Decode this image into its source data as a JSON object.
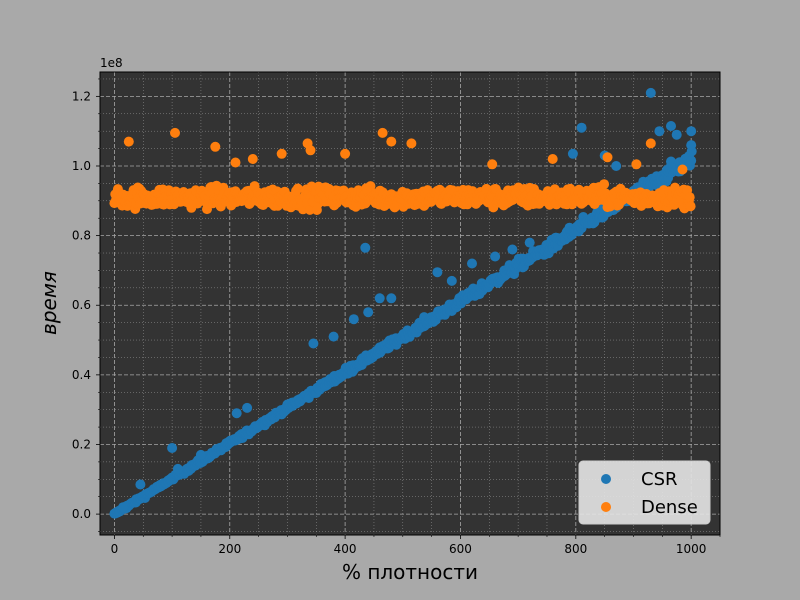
{
  "chart_data": {
    "type": "scatter",
    "xlabel": "% плотности",
    "ylabel": "время",
    "y_multiplier": "1e8",
    "xlim": [
      -25,
      1050
    ],
    "ylim": [
      -0.06,
      1.27
    ],
    "x_ticks": [
      0,
      200,
      400,
      600,
      800,
      1000
    ],
    "y_ticks": [
      0.0,
      0.2,
      0.4,
      0.6,
      0.8,
      1.0,
      1.2
    ],
    "x_minor_step": 50,
    "y_minor_step": 0.05,
    "grid": true,
    "legend_position": "bottom-right",
    "background": "#333333",
    "series": [
      {
        "name": "CSR",
        "color": "#1f77b4",
        "trend": "linear",
        "trend_start": [
          0,
          0.0
        ],
        "trend_end": [
          1000,
          1.02
        ],
        "outliers": [
          [
            15,
            0.02
          ],
          [
            45,
            0.085
          ],
          [
            100,
            0.19
          ],
          [
            110,
            0.13
          ],
          [
            150,
            0.17
          ],
          [
            212,
            0.29
          ],
          [
            230,
            0.305
          ],
          [
            345,
            0.49
          ],
          [
            380,
            0.51
          ],
          [
            415,
            0.56
          ],
          [
            435,
            0.765
          ],
          [
            440,
            0.58
          ],
          [
            460,
            0.62
          ],
          [
            480,
            0.62
          ],
          [
            560,
            0.695
          ],
          [
            585,
            0.67
          ],
          [
            620,
            0.72
          ],
          [
            660,
            0.74
          ],
          [
            690,
            0.76
          ],
          [
            720,
            0.78
          ],
          [
            795,
            1.035
          ],
          [
            810,
            1.11
          ],
          [
            850,
            1.03
          ],
          [
            870,
            1.0
          ],
          [
            930,
            1.21
          ],
          [
            945,
            1.1
          ],
          [
            965,
            1.115
          ],
          [
            975,
            1.09
          ],
          [
            1000,
            1.06
          ],
          [
            1000,
            1.1
          ]
        ]
      },
      {
        "name": "Dense",
        "color": "#ff7f0e",
        "trend": "band",
        "band_range": [
          0.85,
          0.98
        ],
        "outliers": [
          [
            25,
            1.07
          ],
          [
            105,
            1.095
          ],
          [
            175,
            1.055
          ],
          [
            210,
            1.01
          ],
          [
            240,
            1.02
          ],
          [
            290,
            1.035
          ],
          [
            335,
            1.065
          ],
          [
            340,
            1.045
          ],
          [
            400,
            1.035
          ],
          [
            465,
            1.095
          ],
          [
            480,
            1.07
          ],
          [
            515,
            1.065
          ],
          [
            655,
            1.005
          ],
          [
            760,
            1.02
          ],
          [
            855,
            1.025
          ],
          [
            905,
            1.005
          ],
          [
            930,
            1.065
          ],
          [
            985,
            0.99
          ]
        ]
      }
    ]
  }
}
